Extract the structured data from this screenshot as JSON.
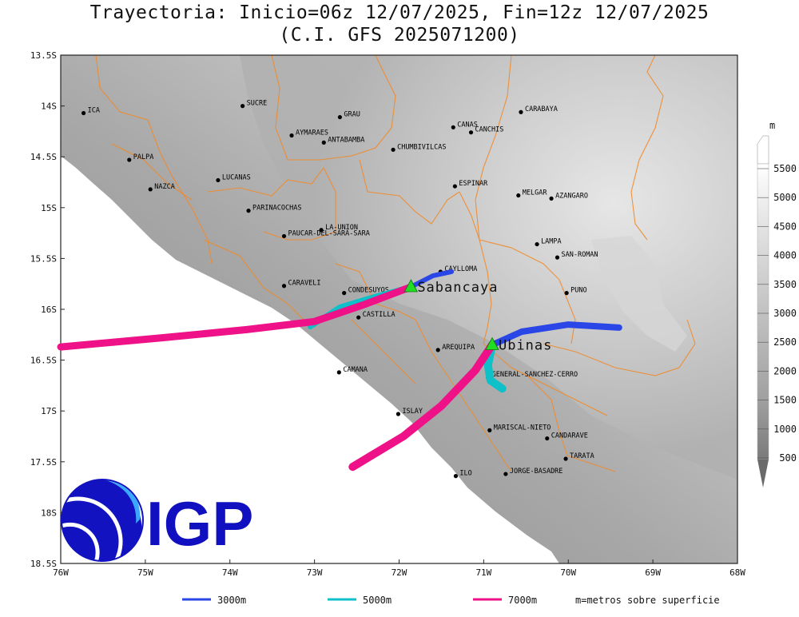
{
  "title": {
    "line1": "Trayectoria: Inicio=06z 12/07/2025, Fin=12z 12/07/2025",
    "line2": "(C.I. GFS 2025071200)"
  },
  "axes": {
    "y_ticks": [
      "13.5S",
      "14S",
      "14.5S",
      "15S",
      "15.5S",
      "16S",
      "16.5S",
      "17S",
      "17.5S",
      "18S",
      "18.5S"
    ],
    "x_ticks": [
      "76W",
      "75W",
      "74W",
      "73W",
      "72W",
      "71W",
      "70W",
      "69W",
      "68W"
    ],
    "lon_range": [
      -76,
      -68
    ],
    "lat_range": [
      -18.5,
      -13.5
    ]
  },
  "provinces": [
    {
      "name": "ICA",
      "lon": -75.73,
      "lat": -14.07
    },
    {
      "name": "SUCRE",
      "lon": -73.85,
      "lat": -14.0
    },
    {
      "name": "GRAU",
      "lon": -72.7,
      "lat": -14.11
    },
    {
      "name": "CANAS",
      "lon": -71.36,
      "lat": -14.21
    },
    {
      "name": "CANCHIS",
      "lon": -71.15,
      "lat": -14.26
    },
    {
      "name": "CARABAYA",
      "lon": -70.56,
      "lat": -14.06
    },
    {
      "name": "AYMARAES",
      "lon": -73.27,
      "lat": -14.29
    },
    {
      "name": "ANTABAMBA",
      "lon": -72.89,
      "lat": -14.36
    },
    {
      "name": "CHUMBIVILCAS",
      "lon": -72.07,
      "lat": -14.43
    },
    {
      "name": "PALPA",
      "lon": -75.19,
      "lat": -14.53
    },
    {
      "name": "LUCANAS",
      "lon": -74.14,
      "lat": -14.73
    },
    {
      "name": "NAZCA",
      "lon": -74.94,
      "lat": -14.82
    },
    {
      "name": "ESPINAR",
      "lon": -71.34,
      "lat": -14.79
    },
    {
      "name": "MELGAR",
      "lon": -70.59,
      "lat": -14.88
    },
    {
      "name": "AZANGARO",
      "lon": -70.2,
      "lat": -14.91
    },
    {
      "name": "PARINACOCHAS",
      "lon": -73.78,
      "lat": -15.03
    },
    {
      "name": "LA-UNION",
      "lon": -72.92,
      "lat": -15.22
    },
    {
      "name": "PAUCAR-DEL-SARA-SARA",
      "lon": -73.36,
      "lat": -15.28
    },
    {
      "name": "LAMPA",
      "lon": -70.37,
      "lat": -15.36
    },
    {
      "name": "SAN-ROMAN",
      "lon": -70.13,
      "lat": -15.49
    },
    {
      "name": "CAYLLOMA",
      "lon": -71.51,
      "lat": -15.63
    },
    {
      "name": "CARAVELI",
      "lon": -73.36,
      "lat": -15.77
    },
    {
      "name": "CONDESUYOS",
      "lon": -72.65,
      "lat": -15.84
    },
    {
      "name": "PUNO",
      "lon": -70.02,
      "lat": -15.84
    },
    {
      "name": "CASTILLA",
      "lon": -72.48,
      "lat": -16.08
    },
    {
      "name": "AREQUIPA",
      "lon": -71.54,
      "lat": -16.4
    },
    {
      "name": "GENERAL-SANCHEZ-CERRO",
      "lon": -70.95,
      "lat": -16.67
    },
    {
      "name": "CAMANA",
      "lon": -72.71,
      "lat": -16.62
    },
    {
      "name": "ISLAY",
      "lon": -72.01,
      "lat": -17.03
    },
    {
      "name": "MARISCAL-NIETO",
      "lon": -70.93,
      "lat": -17.19
    },
    {
      "name": "CANDARAVE",
      "lon": -70.25,
      "lat": -17.27
    },
    {
      "name": "TARATA",
      "lon": -70.03,
      "lat": -17.47
    },
    {
      "name": "ILO",
      "lon": -71.33,
      "lat": -17.64
    },
    {
      "name": "JORGE-BASADRE",
      "lon": -70.74,
      "lat": -17.62
    }
  ],
  "volcanoes": [
    {
      "name": "Sabancaya",
      "lon": -71.86,
      "lat": -15.78
    },
    {
      "name": "Ubinas",
      "lon": -70.9,
      "lat": -16.35
    }
  ],
  "trajectories": [
    {
      "volcano": "Sabancaya",
      "level": "3000m",
      "color": "#2a46e6",
      "width": 6,
      "points": [
        [
          -71.86,
          -15.78
        ],
        [
          -71.6,
          -15.67
        ],
        [
          -71.38,
          -15.63
        ]
      ]
    },
    {
      "volcano": "Sabancaya",
      "level": "5000m",
      "color": "#0fc0c8",
      "width": 7,
      "points": [
        [
          -71.86,
          -15.78
        ],
        [
          -72.3,
          -15.88
        ],
        [
          -72.7,
          -15.98
        ],
        [
          -73.05,
          -16.17
        ]
      ]
    },
    {
      "volcano": "Sabancaya",
      "level": "7000m",
      "color": "#ee1188",
      "width": 9,
      "points": [
        [
          -71.86,
          -15.78
        ],
        [
          -72.4,
          -15.95
        ],
        [
          -73.0,
          -16.12
        ],
        [
          -73.8,
          -16.2
        ],
        [
          -74.8,
          -16.28
        ],
        [
          -76.0,
          -16.37
        ]
      ]
    },
    {
      "volcano": "Ubinas",
      "level": "3000m",
      "color": "#2a46e6",
      "width": 8,
      "points": [
        [
          -70.9,
          -16.35
        ],
        [
          -70.55,
          -16.22
        ],
        [
          -70.0,
          -16.15
        ],
        [
          -69.4,
          -16.18
        ]
      ]
    },
    {
      "volcano": "Ubinas",
      "level": "5000m",
      "color": "#0fc0c8",
      "width": 10,
      "points": [
        [
          -70.9,
          -16.35
        ],
        [
          -70.95,
          -16.55
        ],
        [
          -70.92,
          -16.7
        ],
        [
          -70.78,
          -16.78
        ]
      ]
    },
    {
      "volcano": "Ubinas",
      "level": "7000m",
      "color": "#ee1188",
      "width": 10,
      "points": [
        [
          -70.9,
          -16.35
        ],
        [
          -71.1,
          -16.6
        ],
        [
          -71.5,
          -16.95
        ],
        [
          -71.95,
          -17.25
        ],
        [
          -72.35,
          -17.45
        ],
        [
          -72.55,
          -17.55
        ]
      ]
    }
  ],
  "colorbar": {
    "unit": "m",
    "labels": [
      "5500",
      "5000",
      "4500",
      "4000",
      "3500",
      "3000",
      "2500",
      "2000",
      "1500",
      "1000",
      "500"
    ],
    "shades": [
      "#ffffff",
      "#f4f4f4",
      "#e8e8e8",
      "#dcdcdc",
      "#d0d0d0",
      "#c4c4c4",
      "#b8b8b8",
      "#acacac",
      "#a0a0a0",
      "#949494",
      "#888888",
      "#707070"
    ]
  },
  "legend": {
    "items": [
      {
        "label": "3000m",
        "color": "#2a46e6"
      },
      {
        "label": "5000m",
        "color": "#0fc0c8"
      },
      {
        "label": "7000m",
        "color": "#ee1188"
      }
    ],
    "note": "m=metros sobre superficie"
  },
  "logo": {
    "text": "IGP",
    "color": "#1010c0"
  }
}
